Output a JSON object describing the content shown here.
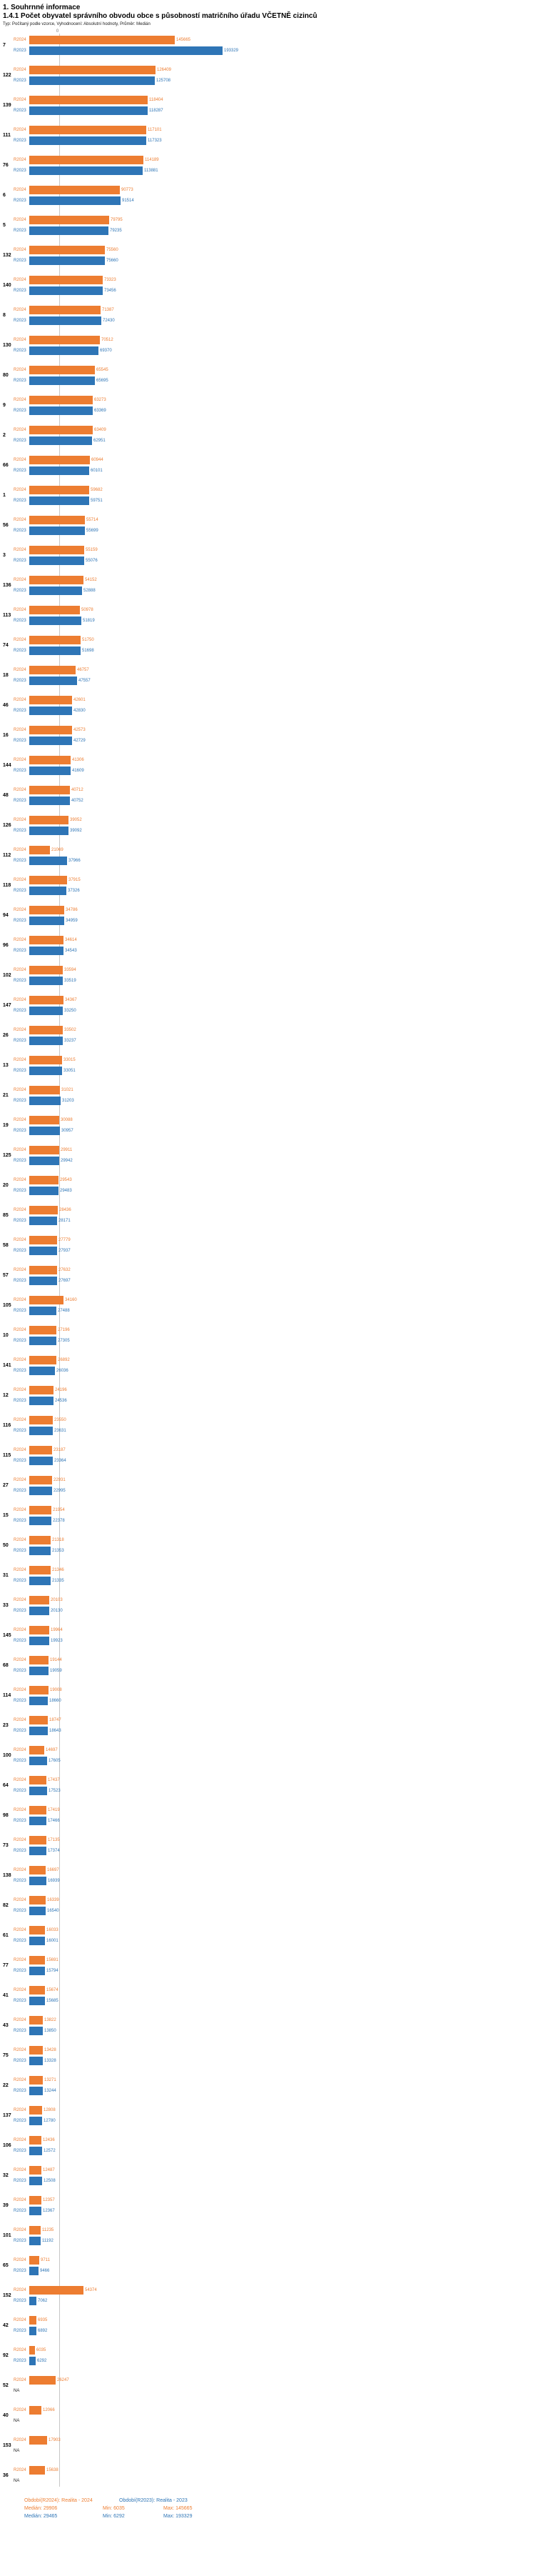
{
  "header": {
    "section_title": "1. Souhrnné informace",
    "indicator_title": "1.4.1 Počet obyvatel správního obvodu obce s působností matričního úřadu VČETNĚ cizinců",
    "meta": "Typ: Počítaný podle vzorce, Vyhodnocení: Absolutní hodnoty, Průměr: Medián"
  },
  "colors": {
    "r2024_orange": "#ED7D31",
    "r2023_blue": "#2E75B6",
    "median_line_gray": "#C7C7C7"
  },
  "axis": {
    "zero_label": "0"
  },
  "series_labels": {
    "r2024": "R2024",
    "r2023": "R2023",
    "na": "NA"
  },
  "footer": {
    "r2024": {
      "period": "Období(R2024): Realita - 2024",
      "median": "Medián: 29906",
      "min": "Min: 6035",
      "max": "Max: 145665"
    },
    "r2023": {
      "period": "Období(R2023): Realita - 2023",
      "median": "Medián: 29465",
      "min": "Min: 6292",
      "max": "Max: 193329"
    }
  },
  "chart_data": {
    "type": "bar",
    "orientation": "horizontal",
    "title": "1.4.1 Počet obyvatel správního obvodu obce s působností matričního úřadu VČETNĚ cizinců",
    "series": [
      "R2024",
      "R2023"
    ],
    "xlim": [
      0,
      200000
    ],
    "grid": false,
    "legend_position": "bottom",
    "median_marker": {
      "R2024": 29906,
      "R2023": 29465
    },
    "stats": {
      "R2024": {
        "median": 29906,
        "min": 6035,
        "max": 145665
      },
      "R2023": {
        "median": 29465,
        "min": 6292,
        "max": 193329
      }
    },
    "groups": [
      {
        "id": "7",
        "R2024": 145665,
        "R2023": 193329
      },
      {
        "id": "122",
        "R2024": 126409,
        "R2023": 125708
      },
      {
        "id": "139",
        "R2024": 118404,
        "R2023": 118287
      },
      {
        "id": "111",
        "R2024": 117101,
        "R2023": 117323
      },
      {
        "id": "76",
        "R2024": 114189,
        "R2023": 113881
      },
      {
        "id": "6",
        "R2024": 90773,
        "R2023": 91514
      },
      {
        "id": "5",
        "R2024": 79795,
        "R2023": 79235
      },
      {
        "id": "132",
        "R2024": 75560,
        "R2023": 75660
      },
      {
        "id": "140",
        "R2024": 73323,
        "R2023": 73456
      },
      {
        "id": "8",
        "R2024": 71387,
        "R2023": 72430
      },
      {
        "id": "130",
        "R2024": 70512,
        "R2023": 69370
      },
      {
        "id": "80",
        "R2024": 65545,
        "R2023": 65695
      },
      {
        "id": "9",
        "R2024": 63273,
        "R2023": 63369
      },
      {
        "id": "2",
        "R2024": 63409,
        "R2023": 62951
      },
      {
        "id": "66",
        "R2024": 60944,
        "R2023": 60101
      },
      {
        "id": "1",
        "R2024": 59682,
        "R2023": 59751
      },
      {
        "id": "56",
        "R2024": 55714,
        "R2023": 55699
      },
      {
        "id": "3",
        "R2024": 55159,
        "R2023": 55076
      },
      {
        "id": "136",
        "R2024": 54152,
        "R2023": 52888
      },
      {
        "id": "113",
        "R2024": 50978,
        "R2023": 51819
      },
      {
        "id": "74",
        "R2024": 51750,
        "R2023": 51698
      },
      {
        "id": "18",
        "R2024": 46757,
        "R2023": 47557
      },
      {
        "id": "46",
        "R2024": 42601,
        "R2023": 42830
      },
      {
        "id": "16",
        "R2024": 42573,
        "R2023": 42729
      },
      {
        "id": "144",
        "R2024": 41306,
        "R2023": 41609
      },
      {
        "id": "48",
        "R2024": 40712,
        "R2023": 40752
      },
      {
        "id": "126",
        "R2024": 39052,
        "R2023": 39092
      },
      {
        "id": "112",
        "R2024": 21069,
        "R2023": 37966
      },
      {
        "id": "118",
        "R2024": 37915,
        "R2023": 37326
      },
      {
        "id": "94",
        "R2024": 34786,
        "R2023": 34959
      },
      {
        "id": "96",
        "R2024": 34614,
        "R2023": 34543
      },
      {
        "id": "102",
        "R2024": 33594,
        "R2023": 33519
      },
      {
        "id": "147",
        "R2024": 34367,
        "R2023": 33250
      },
      {
        "id": "26",
        "R2024": 33502,
        "R2023": 33237
      },
      {
        "id": "13",
        "R2024": 33015,
        "R2023": 33051
      },
      {
        "id": "21",
        "R2024": 31021,
        "R2023": 31203
      },
      {
        "id": "19",
        "R2024": 30088,
        "R2023": 30957
      },
      {
        "id": "125",
        "R2024": 29911,
        "R2023": 29942
      },
      {
        "id": "20",
        "R2024": 29543,
        "R2023": 29483
      },
      {
        "id": "85",
        "R2024": 28436,
        "R2023": 28171
      },
      {
        "id": "58",
        "R2024": 27779,
        "R2023": 27937
      },
      {
        "id": "57",
        "R2024": 27632,
        "R2023": 27697
      },
      {
        "id": "105",
        "R2024": 34160,
        "R2023": 27488
      },
      {
        "id": "10",
        "R2024": 27196,
        "R2023": 27305
      },
      {
        "id": "141",
        "R2024": 26892,
        "R2023": 26036
      },
      {
        "id": "12",
        "R2024": 24196,
        "R2023": 24536
      },
      {
        "id": "116",
        "R2024": 23550,
        "R2023": 23631
      },
      {
        "id": "115",
        "R2024": 23187,
        "R2023": 23364
      },
      {
        "id": "27",
        "R2024": 22931,
        "R2023": 22995
      },
      {
        "id": "15",
        "R2024": 21954,
        "R2023": 22378
      },
      {
        "id": "50",
        "R2024": 21318,
        "R2023": 21353
      },
      {
        "id": "31",
        "R2024": 21346,
        "R2023": 21335
      },
      {
        "id": "33",
        "R2024": 20103,
        "R2023": 20130
      },
      {
        "id": "145",
        "R2024": 19964,
        "R2023": 19923
      },
      {
        "id": "68",
        "R2024": 19144,
        "R2023": 19059
      },
      {
        "id": "114",
        "R2024": 19008,
        "R2023": 18660
      },
      {
        "id": "23",
        "R2024": 18747,
        "R2023": 18643
      },
      {
        "id": "100",
        "R2024": 14697,
        "R2023": 17605
      },
      {
        "id": "64",
        "R2024": 17437,
        "R2023": 17523
      },
      {
        "id": "98",
        "R2024": 17419,
        "R2023": 17466
      },
      {
        "id": "73",
        "R2024": 17135,
        "R2023": 17374
      },
      {
        "id": "138",
        "R2024": 16697,
        "R2023": 16939
      },
      {
        "id": "82",
        "R2024": 16339,
        "R2023": 16540
      },
      {
        "id": "61",
        "R2024": 16033,
        "R2023": 16001
      },
      {
        "id": "77",
        "R2024": 15691,
        "R2023": 15794
      },
      {
        "id": "41",
        "R2024": 15674,
        "R2023": 15685
      },
      {
        "id": "43",
        "R2024": 13822,
        "R2023": 13850
      },
      {
        "id": "75",
        "R2024": 13428,
        "R2023": 13328
      },
      {
        "id": "22",
        "R2024": 13271,
        "R2023": 13244
      },
      {
        "id": "137",
        "R2024": 12808,
        "R2023": 12780
      },
      {
        "id": "106",
        "R2024": 12436,
        "R2023": 12572
      },
      {
        "id": "32",
        "R2024": 12487,
        "R2023": 12508
      },
      {
        "id": "39",
        "R2024": 12357,
        "R2023": 12367
      },
      {
        "id": "101",
        "R2024": 11235,
        "R2023": 11192
      },
      {
        "id": "65",
        "R2024": 9711,
        "R2023": 9466
      },
      {
        "id": "152",
        "R2024": 54374,
        "R2023": 7062
      },
      {
        "id": "42",
        "R2024": 6935,
        "R2023": 6892
      },
      {
        "id": "92",
        "R2024": 6035,
        "R2023": 6292
      },
      {
        "id": "52",
        "R2024": 26247,
        "R2023": null
      },
      {
        "id": "40",
        "R2024": 12066,
        "R2023": null
      },
      {
        "id": "153",
        "R2024": 17903,
        "R2023": null
      },
      {
        "id": "36",
        "R2024": 15638,
        "R2023": null
      }
    ]
  }
}
